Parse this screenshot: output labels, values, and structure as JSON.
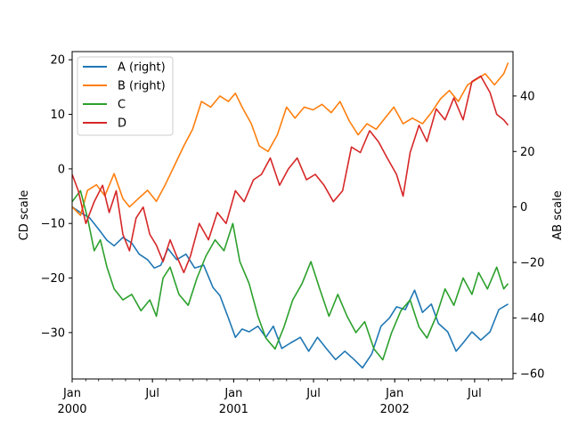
{
  "chart_data": {
    "type": "line",
    "title": "",
    "xlabel": "",
    "ylabel_left": "CD scale",
    "ylabel_right": "AB scale",
    "xlim": [
      "2000-01-01",
      "2002-09-26"
    ],
    "ylim_left": [
      -38.5,
      21.5
    ],
    "ylim_right": [
      -62,
      56
    ],
    "yticks_left": [
      -30,
      -20,
      -10,
      0,
      10,
      20
    ],
    "yticks_right": [
      -60,
      -40,
      -20,
      0,
      20,
      40
    ],
    "xticks": [
      {
        "date": "2000-01-01",
        "label": "Jan",
        "sublabel": "2000"
      },
      {
        "date": "2000-07-01",
        "label": "Jul",
        "sublabel": ""
      },
      {
        "date": "2001-01-01",
        "label": "Jan",
        "sublabel": "2001"
      },
      {
        "date": "2001-07-01",
        "label": "Jul",
        "sublabel": ""
      },
      {
        "date": "2002-01-01",
        "label": "Jan",
        "sublabel": "2002"
      },
      {
        "date": "2002-07-01",
        "label": "Jul",
        "sublabel": ""
      }
    ],
    "grid": false,
    "legend_position": "upper-left",
    "series": [
      {
        "name": "A (right)",
        "axis": "right",
        "color": "#1f77b4",
        "points": [
          [
            "2000-01-01",
            0
          ],
          [
            "2000-01-20",
            -2
          ],
          [
            "2000-02-10",
            -4
          ],
          [
            "2000-03-01",
            -8
          ],
          [
            "2000-03-20",
            -12
          ],
          [
            "2000-04-05",
            -14
          ],
          [
            "2000-04-25",
            -11
          ],
          [
            "2000-05-15",
            -13
          ],
          [
            "2000-06-01",
            -17
          ],
          [
            "2000-06-20",
            -19
          ],
          [
            "2000-07-05",
            -22
          ],
          [
            "2000-07-20",
            -21
          ],
          [
            "2000-08-05",
            -15
          ],
          [
            "2000-08-25",
            -19
          ],
          [
            "2000-09-15",
            -17
          ],
          [
            "2000-10-05",
            -22
          ],
          [
            "2000-10-25",
            -21
          ],
          [
            "2000-11-15",
            -29
          ],
          [
            "2000-12-01",
            -32
          ],
          [
            "2000-12-20",
            -40
          ],
          [
            "2001-01-05",
            -47
          ],
          [
            "2001-01-20",
            -44
          ],
          [
            "2001-02-05",
            -45
          ],
          [
            "2001-02-25",
            -43
          ],
          [
            "2001-03-15",
            -47
          ],
          [
            "2001-04-01",
            -43
          ],
          [
            "2001-04-20",
            -51
          ],
          [
            "2001-05-10",
            -49
          ],
          [
            "2001-06-01",
            -47
          ],
          [
            "2001-06-20",
            -52
          ],
          [
            "2001-07-10",
            -47
          ],
          [
            "2001-07-30",
            -51
          ],
          [
            "2001-08-20",
            -55
          ],
          [
            "2001-09-10",
            -52
          ],
          [
            "2001-10-01",
            -55
          ],
          [
            "2001-10-20",
            -58
          ],
          [
            "2001-11-10",
            -53
          ],
          [
            "2001-12-01",
            -43
          ],
          [
            "2001-12-20",
            -40
          ],
          [
            "2002-01-05",
            -36
          ],
          [
            "2002-01-25",
            -37
          ],
          [
            "2002-02-15",
            -30
          ],
          [
            "2002-03-05",
            -38
          ],
          [
            "2002-03-25",
            -35
          ],
          [
            "2002-04-10",
            -42
          ],
          [
            "2002-05-01",
            -45
          ],
          [
            "2002-05-20",
            -52
          ],
          [
            "2002-06-05",
            -49
          ],
          [
            "2002-06-25",
            -45
          ],
          [
            "2002-07-15",
            -48
          ],
          [
            "2002-08-05",
            -45
          ],
          [
            "2002-08-25",
            -37
          ],
          [
            "2002-09-15",
            -35
          ]
        ]
      },
      {
        "name": "B (right)",
        "axis": "right",
        "color": "#ff7f0e",
        "points": [
          [
            "2000-01-01",
            0
          ],
          [
            "2000-01-20",
            -3
          ],
          [
            "2000-02-05",
            6
          ],
          [
            "2000-02-25",
            8
          ],
          [
            "2000-03-15",
            4
          ],
          [
            "2000-04-05",
            12
          ],
          [
            "2000-04-25",
            3
          ],
          [
            "2000-05-10",
            0
          ],
          [
            "2000-05-30",
            3
          ],
          [
            "2000-06-20",
            6
          ],
          [
            "2000-07-10",
            2
          ],
          [
            "2000-07-30",
            8
          ],
          [
            "2000-08-20",
            15
          ],
          [
            "2000-09-10",
            22
          ],
          [
            "2000-09-30",
            28
          ],
          [
            "2000-10-20",
            38
          ],
          [
            "2000-11-10",
            36
          ],
          [
            "2000-12-01",
            40
          ],
          [
            "2000-12-20",
            38
          ],
          [
            "2001-01-05",
            41
          ],
          [
            "2001-01-20",
            36
          ],
          [
            "2001-02-10",
            30
          ],
          [
            "2001-02-28",
            22
          ],
          [
            "2001-03-20",
            20
          ],
          [
            "2001-04-10",
            26
          ],
          [
            "2001-05-01",
            36
          ],
          [
            "2001-05-20",
            32
          ],
          [
            "2001-06-10",
            36
          ],
          [
            "2001-06-30",
            35
          ],
          [
            "2001-07-20",
            37
          ],
          [
            "2001-08-10",
            34
          ],
          [
            "2001-08-30",
            38
          ],
          [
            "2001-09-20",
            31
          ],
          [
            "2001-10-10",
            26
          ],
          [
            "2001-10-30",
            30
          ],
          [
            "2001-11-20",
            28
          ],
          [
            "2001-12-10",
            32
          ],
          [
            "2001-12-30",
            36
          ],
          [
            "2002-01-20",
            30
          ],
          [
            "2002-02-10",
            32
          ],
          [
            "2002-03-05",
            30
          ],
          [
            "2002-03-25",
            34
          ],
          [
            "2002-04-15",
            39
          ],
          [
            "2002-05-05",
            42
          ],
          [
            "2002-05-25",
            38
          ],
          [
            "2002-06-15",
            44
          ],
          [
            "2002-07-05",
            46
          ],
          [
            "2002-07-25",
            48
          ],
          [
            "2002-08-15",
            44
          ],
          [
            "2002-09-05",
            48
          ],
          [
            "2002-09-15",
            52
          ]
        ]
      },
      {
        "name": "C",
        "axis": "left",
        "color": "#2ca02c",
        "points": [
          [
            "2000-01-01",
            -6
          ],
          [
            "2000-01-20",
            -4
          ],
          [
            "2000-02-05",
            -9
          ],
          [
            "2000-02-20",
            -15
          ],
          [
            "2000-03-05",
            -13
          ],
          [
            "2000-03-20",
            -18
          ],
          [
            "2000-04-05",
            -22
          ],
          [
            "2000-04-25",
            -24
          ],
          [
            "2000-05-15",
            -23
          ],
          [
            "2000-06-05",
            -26
          ],
          [
            "2000-06-25",
            -24
          ],
          [
            "2000-07-10",
            -27
          ],
          [
            "2000-07-25",
            -20
          ],
          [
            "2000-08-10",
            -18
          ],
          [
            "2000-08-30",
            -23
          ],
          [
            "2000-09-20",
            -25
          ],
          [
            "2000-10-10",
            -20
          ],
          [
            "2000-10-30",
            -16
          ],
          [
            "2000-11-20",
            -13
          ],
          [
            "2000-12-10",
            -15
          ],
          [
            "2000-12-30",
            -10
          ],
          [
            "2001-01-15",
            -17
          ],
          [
            "2001-02-05",
            -21
          ],
          [
            "2001-02-25",
            -27
          ],
          [
            "2001-03-15",
            -31
          ],
          [
            "2001-04-05",
            -33
          ],
          [
            "2001-04-25",
            -29
          ],
          [
            "2001-05-15",
            -24
          ],
          [
            "2001-06-05",
            -21
          ],
          [
            "2001-06-25",
            -17
          ],
          [
            "2001-07-15",
            -22
          ],
          [
            "2001-08-05",
            -27
          ],
          [
            "2001-08-25",
            -23
          ],
          [
            "2001-09-15",
            -27
          ],
          [
            "2001-10-05",
            -30
          ],
          [
            "2001-10-25",
            -28
          ],
          [
            "2001-11-15",
            -33
          ],
          [
            "2001-12-05",
            -35
          ],
          [
            "2001-12-25",
            -30
          ],
          [
            "2002-01-15",
            -26
          ],
          [
            "2002-02-05",
            -24
          ],
          [
            "2002-02-25",
            -29
          ],
          [
            "2002-03-15",
            -31
          ],
          [
            "2002-04-05",
            -27
          ],
          [
            "2002-04-25",
            -22
          ],
          [
            "2002-05-15",
            -25
          ],
          [
            "2002-06-05",
            -20
          ],
          [
            "2002-06-25",
            -23
          ],
          [
            "2002-07-10",
            -19
          ],
          [
            "2002-07-30",
            -22
          ],
          [
            "2002-08-20",
            -18
          ],
          [
            "2002-09-05",
            -22
          ],
          [
            "2002-09-15",
            -21
          ]
        ]
      },
      {
        "name": "D",
        "axis": "left",
        "color": "#d62728",
        "points": [
          [
            "2000-01-01",
            -1
          ],
          [
            "2000-01-15",
            -4
          ],
          [
            "2000-02-01",
            -10
          ],
          [
            "2000-02-20",
            -6
          ],
          [
            "2000-03-10",
            -3
          ],
          [
            "2000-03-25",
            -8
          ],
          [
            "2000-04-10",
            -4
          ],
          [
            "2000-04-25",
            -12
          ],
          [
            "2000-05-10",
            -15
          ],
          [
            "2000-05-25",
            -9
          ],
          [
            "2000-06-10",
            -7
          ],
          [
            "2000-06-25",
            -12
          ],
          [
            "2000-07-10",
            -14
          ],
          [
            "2000-07-25",
            -17
          ],
          [
            "2000-08-10",
            -13
          ],
          [
            "2000-08-25",
            -16
          ],
          [
            "2000-09-10",
            -19
          ],
          [
            "2000-09-25",
            -16
          ],
          [
            "2000-10-15",
            -10
          ],
          [
            "2000-11-05",
            -13
          ],
          [
            "2000-11-25",
            -8
          ],
          [
            "2000-12-15",
            -10
          ],
          [
            "2001-01-05",
            -4
          ],
          [
            "2001-01-25",
            -6
          ],
          [
            "2001-02-15",
            -2
          ],
          [
            "2001-03-05",
            -1
          ],
          [
            "2001-03-25",
            2
          ],
          [
            "2001-04-15",
            -3
          ],
          [
            "2001-05-05",
            0
          ],
          [
            "2001-05-25",
            2
          ],
          [
            "2001-06-15",
            -2
          ],
          [
            "2001-07-05",
            -1
          ],
          [
            "2001-07-25",
            -3
          ],
          [
            "2001-08-15",
            -6
          ],
          [
            "2001-09-05",
            -4
          ],
          [
            "2001-09-25",
            4
          ],
          [
            "2001-10-15",
            3
          ],
          [
            "2001-11-05",
            7
          ],
          [
            "2001-11-25",
            5
          ],
          [
            "2001-12-15",
            2
          ],
          [
            "2002-01-05",
            -1
          ],
          [
            "2002-01-20",
            -5
          ],
          [
            "2002-02-05",
            3
          ],
          [
            "2002-02-25",
            8
          ],
          [
            "2002-03-15",
            5
          ],
          [
            "2002-04-05",
            11
          ],
          [
            "2002-04-25",
            9
          ],
          [
            "2002-05-15",
            13
          ],
          [
            "2002-06-05",
            9
          ],
          [
            "2002-06-25",
            16
          ],
          [
            "2002-07-15",
            17
          ],
          [
            "2002-08-05",
            14
          ],
          [
            "2002-08-20",
            10
          ],
          [
            "2002-09-05",
            9
          ],
          [
            "2002-09-15",
            8
          ]
        ]
      }
    ]
  }
}
